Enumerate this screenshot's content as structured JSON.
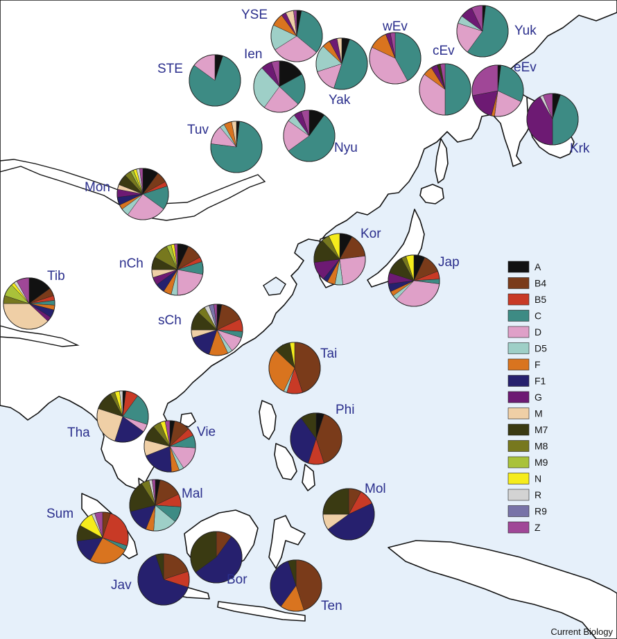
{
  "colors": {
    "sea": "#e6f0fa",
    "land": "#ffffff",
    "coast": "#111111",
    "label": "#2a2e8c"
  },
  "haplogroups": [
    {
      "id": "A",
      "label": "A",
      "color": "#111111"
    },
    {
      "id": "B4",
      "label": "B4",
      "color": "#7a3b1a"
    },
    {
      "id": "B5",
      "label": "B5",
      "color": "#c83a26"
    },
    {
      "id": "C",
      "label": "C",
      "color": "#3d8b84"
    },
    {
      "id": "D",
      "label": "D",
      "color": "#dfa0c8"
    },
    {
      "id": "D5",
      "label": "D5",
      "color": "#9ecfc7"
    },
    {
      "id": "F",
      "label": "F",
      "color": "#d9741f"
    },
    {
      "id": "F1",
      "label": "F1",
      "color": "#26206e"
    },
    {
      "id": "G",
      "label": "G",
      "color": "#6d1a73"
    },
    {
      "id": "M",
      "label": "M",
      "color": "#efcfa6"
    },
    {
      "id": "M7",
      "label": "M7",
      "color": "#3a3a12"
    },
    {
      "id": "M8",
      "label": "M8",
      "color": "#77781e"
    },
    {
      "id": "M9",
      "label": "M9",
      "color": "#a9c23a"
    },
    {
      "id": "N",
      "label": "N",
      "color": "#f5ec1c"
    },
    {
      "id": "R",
      "label": "R",
      "color": "#d3d3d3"
    },
    {
      "id": "R9",
      "label": "R9",
      "color": "#7873a8"
    },
    {
      "id": "Z",
      "label": "Z",
      "color": "#a04797"
    }
  ],
  "populations": [
    {
      "id": "YSE",
      "label": "YSE",
      "values": {
        "A": 3,
        "C": 33,
        "D": 30,
        "D5": 16,
        "F": 8,
        "M": 5,
        "G": 3,
        "Z": 2
      }
    },
    {
      "id": "Yuk",
      "label": "Yuk",
      "values": {
        "A": 2,
        "C": 58,
        "D": 20,
        "D5": 5,
        "G": 8,
        "Z": 7
      }
    },
    {
      "id": "wEv",
      "label": "wEv",
      "values": {
        "C": 42,
        "D": 40,
        "F": 12,
        "Z": 3,
        "G": 3
      }
    },
    {
      "id": "Ien",
      "label": "Ien",
      "values": {
        "A": 17,
        "C": 20,
        "D": 23,
        "D5": 28,
        "G": 7,
        "Z": 5
      }
    },
    {
      "id": "STE",
      "label": "STE",
      "values": {
        "A": 5,
        "C": 80,
        "D": 15
      }
    },
    {
      "id": "Yak",
      "label": "Yak",
      "values": {
        "A": 5,
        "C": 50,
        "D": 15,
        "D5": 17,
        "F": 5,
        "G": 5,
        "M": 3
      }
    },
    {
      "id": "cEv",
      "label": "cEv",
      "values": {
        "C": 50,
        "D": 35,
        "F": 6,
        "G": 4,
        "Z": 3,
        "M7": 2
      }
    },
    {
      "id": "eEv",
      "label": "eEv",
      "values": {
        "C": 30,
        "D": 20,
        "Z": 28,
        "G": 18,
        "F": 2,
        "A": 2
      }
    },
    {
      "id": "Krk",
      "label": "Krk",
      "values": {
        "A": 5,
        "C": 45,
        "G": 42,
        "Z": 6,
        "R": 2
      }
    },
    {
      "id": "Tuv",
      "label": "Tuv",
      "values": {
        "C": 75,
        "D": 12,
        "D5": 3,
        "F": 5,
        "M": 3,
        "A": 2
      }
    },
    {
      "id": "Nyu",
      "label": "Nyu",
      "values": {
        "A": 10,
        "C": 55,
        "D": 20,
        "D5": 5,
        "G": 5,
        "Z": 5
      }
    },
    {
      "id": "Mon",
      "label": "Mon",
      "values": {
        "A": 10,
        "B4": 7,
        "B5": 3,
        "C": 15,
        "D": 25,
        "D5": 5,
        "F": 3,
        "F1": 5,
        "G": 5,
        "M7": 7,
        "M8": 4,
        "M": 3,
        "M9": 2,
        "N": 2,
        "R": 2,
        "Z": 2
      }
    },
    {
      "id": "Kor",
      "label": "Kor",
      "values": {
        "A": 8,
        "B4": 15,
        "D": 25,
        "D5": 5,
        "F": 5,
        "F1": 3,
        "G": 12,
        "M7": 15,
        "N": 7,
        "M8": 5
      }
    },
    {
      "id": "Jap",
      "label": "Jap",
      "values": {
        "A": 7,
        "B4": 12,
        "B5": 5,
        "C": 3,
        "D": 35,
        "D5": 3,
        "F": 3,
        "F1": 5,
        "G": 7,
        "M7": 12,
        "N": 5,
        "M8": 3
      }
    },
    {
      "id": "nCh",
      "label": "nCh",
      "values": {
        "A": 7,
        "B4": 10,
        "B5": 3,
        "C": 8,
        "D": 22,
        "D5": 4,
        "F": 5,
        "F1": 6,
        "G": 5,
        "M": 5,
        "M7": 8,
        "M8": 10,
        "M9": 3,
        "N": 2,
        "Z": 2
      }
    },
    {
      "id": "Tib",
      "label": "Tib",
      "values": {
        "A": 15,
        "B4": 5,
        "B5": 3,
        "C": 3,
        "F": 3,
        "F1": 5,
        "G": 3,
        "M": 38,
        "M8": 5,
        "M9": 8,
        "N": 2,
        "R": 2,
        "Z": 8
      }
    },
    {
      "id": "sCh",
      "label": "sCh",
      "values": {
        "A": 3,
        "B4": 15,
        "B5": 8,
        "C": 4,
        "D": 10,
        "D5": 3,
        "F": 12,
        "F1": 15,
        "M": 5,
        "M7": 12,
        "M8": 5,
        "R": 3,
        "R9": 3,
        "Z": 2
      }
    },
    {
      "id": "Tai",
      "label": "Tai",
      "values": {
        "B4": 45,
        "B5": 10,
        "F": 30,
        "M7": 10,
        "N": 3,
        "D5": 2
      }
    },
    {
      "id": "Phi",
      "label": "Phi",
      "values": {
        "A": 5,
        "B4": 40,
        "B5": 10,
        "F1": 35,
        "M7": 10
      }
    },
    {
      "id": "Tha",
      "label": "Tha",
      "values": {
        "A": 2,
        "B5": 8,
        "C": 20,
        "D": 5,
        "F1": 20,
        "M": 25,
        "M7": 12,
        "M8": 3,
        "N": 3,
        "R": 2
      }
    },
    {
      "id": "Vie",
      "label": "Vie",
      "values": {
        "A": 3,
        "B4": 10,
        "B5": 5,
        "C": 8,
        "D": 15,
        "D5": 3,
        "F": 5,
        "F1": 20,
        "M": 10,
        "M7": 10,
        "M8": 5,
        "N": 3,
        "Z": 3
      }
    },
    {
      "id": "Mal",
      "label": "Mal",
      "values": {
        "A": 3,
        "B4": 15,
        "B5": 8,
        "C": 10,
        "D5": 15,
        "F": 5,
        "F1": 15,
        "M7": 20,
        "M8": 5,
        "R": 2,
        "Z": 2
      }
    },
    {
      "id": "Mol",
      "label": "Mol",
      "values": {
        "B4": 8,
        "B5": 10,
        "F1": 47,
        "M": 10,
        "M7": 25
      }
    },
    {
      "id": "Sum",
      "label": "Sum",
      "values": {
        "B4": 5,
        "B5": 25,
        "C": 3,
        "F": 25,
        "F1": 15,
        "M7": 10,
        "N": 10,
        "R": 2,
        "Z": 5
      }
    },
    {
      "id": "Jav",
      "label": "Jav",
      "values": {
        "B4": 20,
        "B5": 10,
        "F1": 65,
        "M7": 5
      }
    },
    {
      "id": "Bor",
      "label": "Bor",
      "values": {
        "B4": 10,
        "F1": 55,
        "M7": 35
      }
    },
    {
      "id": "Ten",
      "label": "Ten",
      "values": {
        "B4": 45,
        "F": 15,
        "F1": 35,
        "M7": 5
      }
    }
  ],
  "credit": "Current Biology"
}
